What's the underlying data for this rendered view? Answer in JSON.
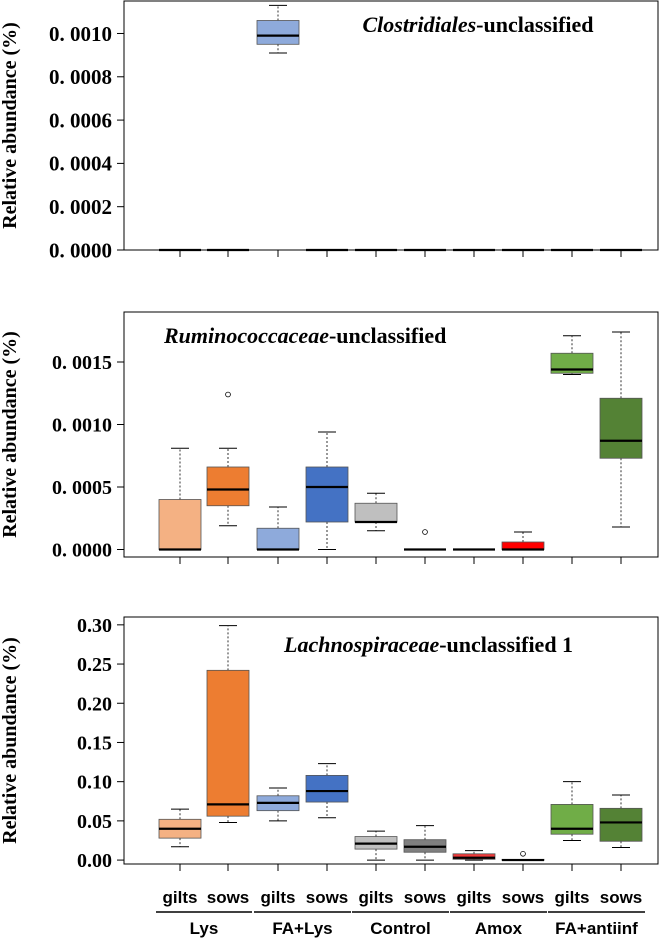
{
  "chart_data": [
    {
      "type": "boxplot",
      "title_italic": "Clostridiales",
      "title_rest": "-unclassified",
      "ylabel": "Relative abundance (%)",
      "ylim": [
        0,
        0.00115
      ],
      "yticks": [
        0.0,
        0.0002,
        0.0004,
        0.0006,
        0.0008,
        0.001
      ],
      "ytick_labels": [
        "0. 0000",
        "0. 0002",
        "0. 0004",
        "0. 0006",
        "0. 0008",
        "0. 0010"
      ],
      "boxes": [
        {
          "group": "Lys",
          "sub": "gilts",
          "color": "#f4b183",
          "min": 0,
          "q1": 0,
          "median": 0,
          "q3": 0,
          "max": 0,
          "outliers": []
        },
        {
          "group": "Lys",
          "sub": "sows",
          "color": "#ed7d31",
          "min": 0,
          "q1": 0,
          "median": 0,
          "q3": 0,
          "max": 0,
          "outliers": []
        },
        {
          "group": "FA+Lys",
          "sub": "gilts",
          "color": "#8eaadb",
          "min": 0.00091,
          "q1": 0.00095,
          "median": 0.00099,
          "q3": 0.00106,
          "max": 0.00113,
          "outliers": []
        },
        {
          "group": "FA+Lys",
          "sub": "sows",
          "color": "#4472c4",
          "min": 0,
          "q1": 0,
          "median": 0,
          "q3": 0,
          "max": 0,
          "outliers": []
        },
        {
          "group": "Control",
          "sub": "gilts",
          "color": "#bfbfbf",
          "min": 0,
          "q1": 0,
          "median": 0,
          "q3": 0,
          "max": 0,
          "outliers": []
        },
        {
          "group": "Control",
          "sub": "sows",
          "color": "#7f7f7f",
          "min": 0,
          "q1": 0,
          "median": 0,
          "q3": 0,
          "max": 0,
          "outliers": []
        },
        {
          "group": "Amox",
          "sub": "gilts",
          "color": "#ee3b3b",
          "min": 0,
          "q1": 0,
          "median": 0,
          "q3": 0,
          "max": 0,
          "outliers": []
        },
        {
          "group": "Amox",
          "sub": "sows",
          "color": "#ff0000",
          "min": 0,
          "q1": 0,
          "median": 0,
          "q3": 0,
          "max": 0,
          "outliers": []
        },
        {
          "group": "FA+antiinf",
          "sub": "gilts",
          "color": "#70ad47",
          "min": 0,
          "q1": 0,
          "median": 0,
          "q3": 0,
          "max": 0,
          "outliers": []
        },
        {
          "group": "FA+antiinf",
          "sub": "sows",
          "color": "#548235",
          "min": 0,
          "q1": 0,
          "median": 0,
          "q3": 0,
          "max": 0,
          "outliers": []
        }
      ]
    },
    {
      "type": "boxplot",
      "title_italic": "Ruminococcaceae",
      "title_rest": "-unclassified",
      "ylabel": "Relative abundance (%)",
      "ylim": [
        -6e-05,
        0.0019
      ],
      "yticks": [
        0.0,
        0.0005,
        0.001,
        0.0015
      ],
      "ytick_labels": [
        "0. 0000",
        "0. 0005",
        "0. 0010",
        "0. 0015"
      ],
      "boxes": [
        {
          "group": "Lys",
          "sub": "gilts",
          "color": "#f4b183",
          "min": 0,
          "q1": 0,
          "median": 0,
          "q3": 0.0004,
          "max": 0.00081,
          "outliers": []
        },
        {
          "group": "Lys",
          "sub": "sows",
          "color": "#ed7d31",
          "min": 0.00019,
          "q1": 0.00035,
          "median": 0.00048,
          "q3": 0.00066,
          "max": 0.00081,
          "outliers": [
            0.00124
          ]
        },
        {
          "group": "FA+Lys",
          "sub": "gilts",
          "color": "#8eaadb",
          "min": 0,
          "q1": 0,
          "median": 0,
          "q3": 0.00017,
          "max": 0.00034,
          "outliers": []
        },
        {
          "group": "FA+Lys",
          "sub": "sows",
          "color": "#4472c4",
          "min": 0,
          "q1": 0.00022,
          "median": 0.0005,
          "q3": 0.00066,
          "max": 0.00094,
          "outliers": []
        },
        {
          "group": "Control",
          "sub": "gilts",
          "color": "#bfbfbf",
          "min": 0.00015,
          "q1": 0.00022,
          "median": 0.00022,
          "q3": 0.00037,
          "max": 0.00045,
          "outliers": []
        },
        {
          "group": "Control",
          "sub": "sows",
          "color": "#7f7f7f",
          "min": 0,
          "q1": 0,
          "median": 0,
          "q3": 0,
          "max": 0,
          "outliers": [
            0.00014
          ]
        },
        {
          "group": "Amox",
          "sub": "gilts",
          "color": "#ee3b3b",
          "min": 0,
          "q1": 0,
          "median": 0,
          "q3": 0,
          "max": 0,
          "outliers": []
        },
        {
          "group": "Amox",
          "sub": "sows",
          "color": "#ff0000",
          "min": 0,
          "q1": 0,
          "median": 0,
          "q3": 6e-05,
          "max": 0.00014,
          "outliers": []
        },
        {
          "group": "FA+antiinf",
          "sub": "gilts",
          "color": "#70ad47",
          "min": 0.0014,
          "q1": 0.00141,
          "median": 0.00144,
          "q3": 0.00157,
          "max": 0.00171,
          "outliers": []
        },
        {
          "group": "FA+antiinf",
          "sub": "sows",
          "color": "#548235",
          "min": 0.00018,
          "q1": 0.00073,
          "median": 0.00087,
          "q3": 0.00121,
          "max": 0.00174,
          "outliers": []
        }
      ]
    },
    {
      "type": "boxplot",
      "title_italic": "Lachnospiraceae",
      "title_rest": "-unclassified  1",
      "ylabel": "Relative abundance (%)",
      "ylim": [
        -0.005,
        0.31
      ],
      "yticks": [
        0.0,
        0.05,
        0.1,
        0.15,
        0.2,
        0.25,
        0.3
      ],
      "ytick_labels": [
        "0.00",
        "0.05",
        "0.10",
        "0.15",
        "0.20",
        "0.25",
        "0.30"
      ],
      "boxes": [
        {
          "group": "Lys",
          "sub": "gilts",
          "color": "#f4b183",
          "min": 0.017,
          "q1": 0.028,
          "median": 0.04,
          "q3": 0.052,
          "max": 0.065,
          "outliers": []
        },
        {
          "group": "Lys",
          "sub": "sows",
          "color": "#ed7d31",
          "min": 0.048,
          "q1": 0.056,
          "median": 0.071,
          "q3": 0.242,
          "max": 0.299,
          "outliers": []
        },
        {
          "group": "FA+Lys",
          "sub": "gilts",
          "color": "#8eaadb",
          "min": 0.05,
          "q1": 0.063,
          "median": 0.073,
          "q3": 0.082,
          "max": 0.092,
          "outliers": []
        },
        {
          "group": "FA+Lys",
          "sub": "sows",
          "color": "#4472c4",
          "min": 0.054,
          "q1": 0.074,
          "median": 0.088,
          "q3": 0.108,
          "max": 0.123,
          "outliers": []
        },
        {
          "group": "Control",
          "sub": "gilts",
          "color": "#bfbfbf",
          "min": 0.0,
          "q1": 0.014,
          "median": 0.021,
          "q3": 0.03,
          "max": 0.037,
          "outliers": []
        },
        {
          "group": "Control",
          "sub": "sows",
          "color": "#7f7f7f",
          "min": 0.0,
          "q1": 0.01,
          "median": 0.017,
          "q3": 0.026,
          "max": 0.044,
          "outliers": []
        },
        {
          "group": "Amox",
          "sub": "gilts",
          "color": "#ee3b3b",
          "min": 0.0,
          "q1": 0.001,
          "median": 0.003,
          "q3": 0.008,
          "max": 0.012,
          "outliers": []
        },
        {
          "group": "Amox",
          "sub": "sows",
          "color": "#ff0000",
          "min": 0.0,
          "q1": 0.0,
          "median": 0.0,
          "q3": 0.001,
          "max": 0.001,
          "outliers": [
            0.008
          ]
        },
        {
          "group": "FA+antiinf",
          "sub": "gilts",
          "color": "#70ad47",
          "min": 0.025,
          "q1": 0.033,
          "median": 0.04,
          "q3": 0.071,
          "max": 0.1,
          "outliers": []
        },
        {
          "group": "FA+antiinf",
          "sub": "sows",
          "color": "#548235",
          "min": 0.016,
          "q1": 0.024,
          "median": 0.048,
          "q3": 0.066,
          "max": 0.083,
          "outliers": []
        }
      ]
    }
  ],
  "x_sub_labels": [
    "gilts",
    "sows",
    "gilts",
    "sows",
    "gilts",
    "sows",
    "gilts",
    "sows",
    "gilts",
    "sows"
  ],
  "x_group_labels": [
    "Lys",
    "FA+Lys",
    "Control",
    "Amox",
    "FA+antiinf"
  ]
}
